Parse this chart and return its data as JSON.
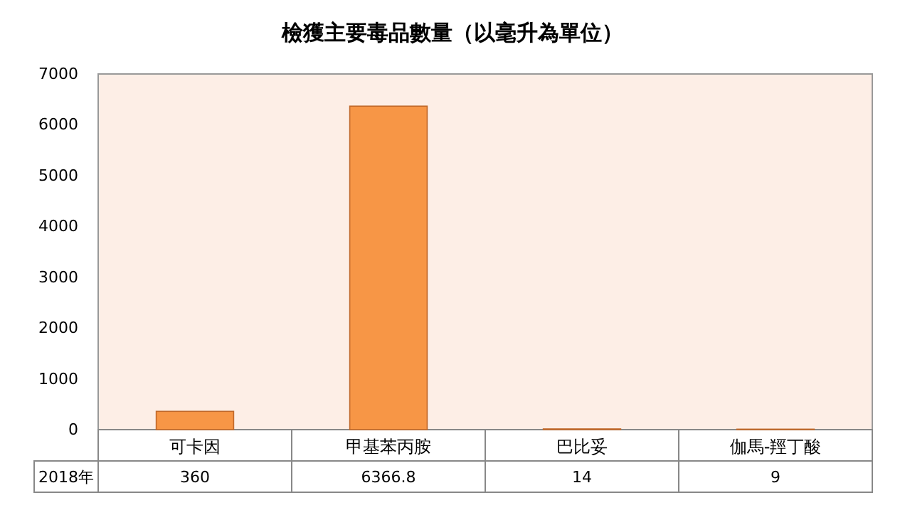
{
  "chart_data": {
    "type": "bar",
    "title": "檢獲主要毒品數量（以毫升為單位）",
    "categories": [
      "可卡因",
      "甲基苯丙胺",
      "巴比妥",
      "伽馬-羥丁酸"
    ],
    "series": [
      {
        "name": "2018年",
        "color": "#f79646",
        "values": [
          360,
          6366.8,
          14,
          9
        ]
      }
    ],
    "value_labels": [
      "360",
      "6366.8",
      "14",
      "9"
    ],
    "ylim": [
      0,
      7000
    ],
    "yticks": [
      0,
      1000,
      2000,
      3000,
      4000,
      5000,
      6000,
      7000
    ],
    "grid": false,
    "legend": false
  }
}
